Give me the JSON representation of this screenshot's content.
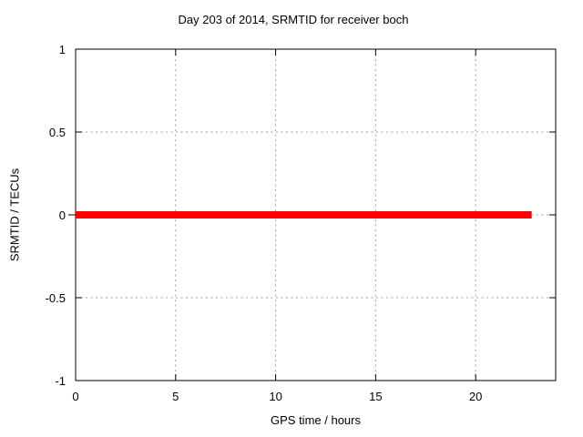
{
  "chart_data": {
    "type": "line",
    "title": "Day 203 of 2014, SRMTID for receiver boch",
    "xlabel": "GPS time / hours",
    "ylabel": "SRMTID / TECUs",
    "xlim": [
      0,
      24
    ],
    "ylim": [
      -1,
      1
    ],
    "xticks": [
      {
        "value": 0,
        "label": "0"
      },
      {
        "value": 5,
        "label": "5"
      },
      {
        "value": 10,
        "label": "10"
      },
      {
        "value": 15,
        "label": "15"
      },
      {
        "value": 20,
        "label": "20"
      }
    ],
    "yticks": [
      {
        "value": -1,
        "label": "-1"
      },
      {
        "value": -0.5,
        "label": "-0.5"
      },
      {
        "value": 0,
        "label": "0"
      },
      {
        "value": 0.5,
        "label": "0.5"
      },
      {
        "value": 1,
        "label": "1"
      }
    ],
    "grid": {
      "visible": true,
      "style": "dotted",
      "color": "#a0a0a0"
    },
    "axis_color": "#000000",
    "background_color": "#ffffff",
    "legend": "none",
    "series": [
      {
        "name": "SRMTID",
        "color": "#ff0000",
        "line_width": 8,
        "x": [
          0,
          22.8
        ],
        "y": [
          0,
          0
        ]
      }
    ]
  }
}
